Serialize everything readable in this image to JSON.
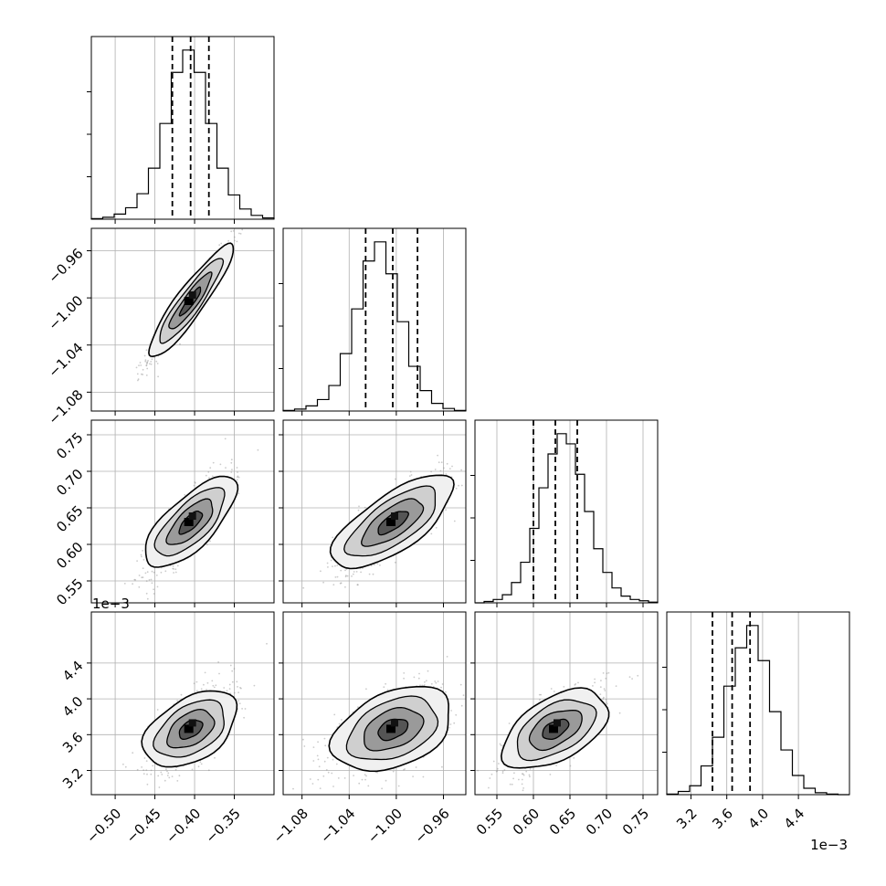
{
  "chart_data": {
    "type": "corner",
    "ndim": 4,
    "grid": true,
    "x_offset_label": "1e−3",
    "y_offset_label": "1e−3",
    "params": [
      {
        "median": -0.405,
        "q16": -0.428,
        "q84": -0.382,
        "range": [
          -0.53,
          -0.3
        ],
        "ticks": [
          -0.5,
          -0.45,
          -0.4,
          -0.35
        ],
        "tick_labels": [
          "−0.50",
          "−0.45",
          "−0.40",
          "−0.35"
        ]
      },
      {
        "median": -1.003,
        "q16": -1.026,
        "q84": -0.982,
        "range": [
          -1.096,
          -0.941
        ],
        "ticks": [
          -1.08,
          -1.04,
          -1.0,
          -0.96
        ],
        "tick_labels": [
          "−1.08",
          "−1.04",
          "−1.00",
          "−0.96"
        ]
      },
      {
        "median": 0.63,
        "q16": 0.6,
        "q84": 0.66,
        "range": [
          0.52,
          0.77
        ],
        "ticks": [
          0.55,
          0.6,
          0.65,
          0.7,
          0.75
        ],
        "tick_labels": [
          "0.55",
          "0.60",
          "0.65",
          "0.70",
          "0.75"
        ]
      },
      {
        "median": 3.66,
        "q16": 3.44,
        "q84": 3.86,
        "range": [
          2.93,
          4.97
        ],
        "ticks": [
          3.2,
          3.6,
          4.0,
          4.4
        ],
        "tick_labels": [
          "3.2",
          "3.6",
          "4.0",
          "4.4"
        ]
      }
    ],
    "histograms": [
      [
        1,
        3,
        8,
        18,
        40,
        80,
        150,
        230,
        265,
        230,
        150,
        80,
        38,
        16,
        6,
        2
      ],
      [
        1,
        3,
        8,
        18,
        40,
        90,
        160,
        235,
        265,
        215,
        140,
        70,
        32,
        12,
        4,
        1
      ],
      [
        0,
        2,
        5,
        12,
        30,
        60,
        110,
        170,
        220,
        250,
        235,
        190,
        135,
        80,
        45,
        22,
        10,
        5,
        3,
        1
      ],
      [
        1,
        5,
        14,
        45,
        90,
        170,
        230,
        265,
        210,
        130,
        70,
        30,
        10,
        3,
        1,
        0
      ]
    ],
    "correlations": [
      [
        1.0,
        0.97,
        0.82,
        0.62
      ],
      [
        0.97,
        1.0,
        0.82,
        0.6
      ],
      [
        0.82,
        0.82,
        1.0,
        0.68
      ],
      [
        0.62,
        0.6,
        0.68,
        1.0
      ]
    ]
  }
}
